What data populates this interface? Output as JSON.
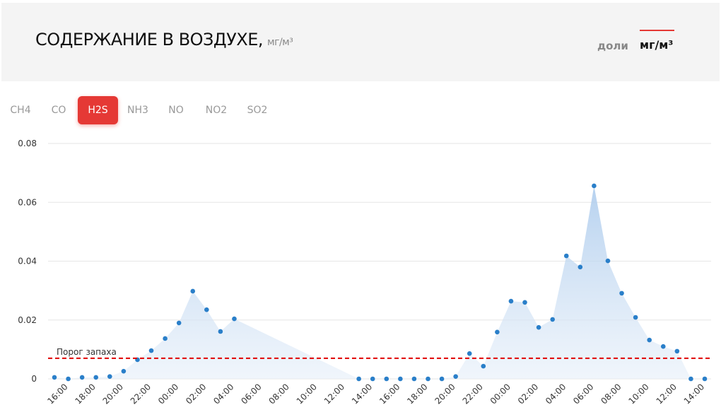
{
  "header": {
    "title": "СОДЕРЖАНИЕ В ВОЗДУХЕ,",
    "unit": "мг/м³"
  },
  "units": [
    "доли",
    "мг/м³"
  ],
  "tabs": [
    "CH4",
    "CO",
    "H2S",
    "NH3",
    "NO",
    "NO2",
    "SO2"
  ],
  "active_tab": 2,
  "chart_data": {
    "type": "area",
    "color": "#2a7fc9",
    "categories": [
      null,
      "16:00",
      null,
      "18:00",
      null,
      "20:00",
      null,
      "22:00",
      null,
      "00:00",
      null,
      "02:00",
      null,
      "04:00",
      null,
      "06:00",
      null,
      "08:00",
      null,
      "10:00",
      null,
      "12:00",
      null,
      "14:00",
      null,
      "16:00",
      null,
      "18:00",
      null,
      "20:00",
      null,
      "22:00",
      null,
      "00:00",
      null,
      "02:00",
      null,
      "04:00",
      null,
      "06:00",
      null,
      "08:00",
      null,
      "10:00",
      null,
      "12:00",
      null,
      "14:00"
    ],
    "values": [
      0.0005,
      0,
      0.0005,
      0.0005,
      0.0008,
      0.0026,
      0.0065,
      0.0096,
      0.0137,
      0.019,
      0.0298,
      0.0235,
      0.0161,
      0.0204,
      null,
      null,
      null,
      null,
      null,
      null,
      null,
      null,
      0,
      0,
      0,
      0,
      0,
      0,
      0,
      0.0008,
      0.0086,
      0.0043,
      0.0159,
      0.0264,
      0.026,
      0.0175,
      0.0202,
      0.0418,
      0.038,
      0.0656,
      0.0401,
      0.0291,
      0.0209,
      0.0132,
      0.011,
      0.0094,
      0,
      0
    ],
    "ylim": [
      0,
      0.08
    ],
    "yticks": [
      0,
      0.02,
      0.04,
      0.06,
      0.08
    ],
    "grid": true,
    "threshold": {
      "value": 0.007,
      "label": "Порог запаха",
      "color": "#e00000"
    }
  }
}
